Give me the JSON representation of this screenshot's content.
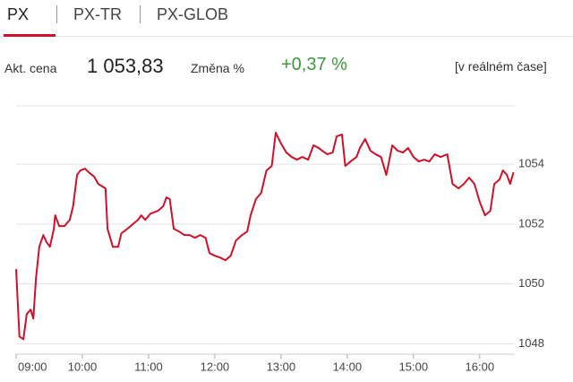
{
  "tabs": [
    "PX",
    "PX-TR",
    "PX-GLOB"
  ],
  "info": {
    "price_label": "Akt. cena",
    "price": "1 053,83",
    "change_label": "Změna %",
    "change": "+0,37 %",
    "realtime": "[v reálném čase]"
  },
  "chart_data": {
    "type": "line",
    "color": "#d0102a",
    "xlim": [
      9,
      16.53
    ],
    "ylim": [
      1047.65,
      1055.95
    ],
    "grid": true,
    "yticks": [
      1048,
      1050,
      1052,
      1054
    ],
    "xticks": [
      {
        "value": 9,
        "label": "09:00"
      },
      {
        "value": 10,
        "label": "10:00"
      },
      {
        "value": 11,
        "label": "11:00"
      },
      {
        "value": 12,
        "label": "12:00"
      },
      {
        "value": 13,
        "label": "13:00"
      },
      {
        "value": 14,
        "label": "14:00"
      },
      {
        "value": 15,
        "label": "15:00"
      },
      {
        "value": 16,
        "label": "16:00"
      }
    ],
    "x": [
      9.0,
      9.05,
      9.11,
      9.16,
      9.22,
      9.26,
      9.3,
      9.35,
      9.41,
      9.46,
      9.51,
      9.57,
      9.59,
      9.65,
      9.73,
      9.81,
      9.86,
      9.92,
      9.97,
      10.04,
      10.11,
      10.18,
      10.24,
      10.35,
      10.38,
      10.46,
      10.54,
      10.59,
      10.68,
      10.76,
      10.84,
      10.89,
      10.95,
      11.03,
      11.14,
      11.22,
      11.27,
      11.32,
      11.38,
      11.46,
      11.54,
      11.62,
      11.7,
      11.78,
      11.86,
      11.92,
      12.0,
      12.08,
      12.16,
      12.24,
      12.32,
      12.41,
      12.49,
      12.54,
      12.62,
      12.7,
      12.78,
      12.86,
      12.92,
      13.0,
      13.08,
      13.16,
      13.24,
      13.32,
      13.41,
      13.49,
      13.57,
      13.62,
      13.7,
      13.78,
      13.84,
      13.92,
      13.97,
      14.05,
      14.14,
      14.19,
      14.27,
      14.35,
      14.43,
      14.51,
      14.59,
      14.68,
      14.76,
      14.84,
      14.92,
      15.0,
      15.08,
      15.16,
      15.24,
      15.32,
      15.41,
      15.51,
      15.59,
      15.68,
      15.76,
      15.84,
      15.92,
      16.0,
      16.08,
      16.16,
      16.22,
      16.3,
      16.35,
      16.41,
      16.46,
      16.51
    ],
    "values": [
      1050.49,
      1048.24,
      1048.15,
      1048.99,
      1049.14,
      1048.84,
      1050.19,
      1051.24,
      1051.63,
      1051.39,
      1051.24,
      1051.84,
      1052.29,
      1051.93,
      1051.93,
      1052.14,
      1052.59,
      1053.64,
      1053.79,
      1053.85,
      1053.7,
      1053.58,
      1053.34,
      1053.19,
      1051.84,
      1051.24,
      1051.24,
      1051.69,
      1051.84,
      1051.99,
      1052.14,
      1052.29,
      1052.14,
      1052.35,
      1052.44,
      1052.59,
      1052.89,
      1052.83,
      1051.84,
      1051.75,
      1051.63,
      1051.63,
      1051.54,
      1051.63,
      1051.54,
      1051.03,
      1050.94,
      1050.88,
      1050.79,
      1050.94,
      1051.45,
      1051.63,
      1051.75,
      1052.29,
      1052.83,
      1053.04,
      1053.79,
      1053.94,
      1055.05,
      1054.69,
      1054.39,
      1054.24,
      1054.15,
      1054.24,
      1054.15,
      1054.63,
      1054.54,
      1054.45,
      1054.33,
      1054.39,
      1054.93,
      1054.99,
      1053.94,
      1054.09,
      1054.24,
      1054.54,
      1054.84,
      1054.45,
      1054.33,
      1054.24,
      1053.64,
      1054.63,
      1054.45,
      1054.39,
      1054.54,
      1054.24,
      1054.09,
      1054.15,
      1054.09,
      1054.33,
      1054.24,
      1054.33,
      1053.34,
      1053.19,
      1053.34,
      1053.55,
      1053.34,
      1052.74,
      1052.29,
      1052.44,
      1053.34,
      1053.49,
      1053.79,
      1053.64,
      1053.34,
      1053.73
    ]
  }
}
